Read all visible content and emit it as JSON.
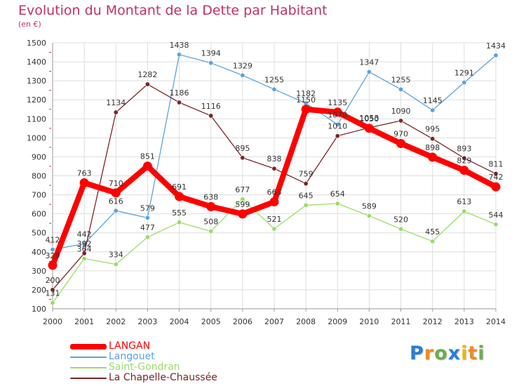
{
  "title": "Evolution du Montant de la Dette par Habitant",
  "unit": "(en €)",
  "logo": {
    "letters": [
      "P",
      "r",
      "o",
      "x",
      "i",
      "t",
      "i"
    ],
    "colors": [
      "#2a7fd4",
      "#f08a24",
      "#6ab04c",
      "#2a7fd4",
      "#e9b800",
      "#f08a24",
      "#6ab04c"
    ]
  },
  "chart_data": {
    "type": "line",
    "x": [
      "2000",
      "2001",
      "2002",
      "2003",
      "2004",
      "2005",
      "2006",
      "2007",
      "2008",
      "2009",
      "2010",
      "2011",
      "2012",
      "2013",
      "2014"
    ],
    "ylim": [
      100,
      1500
    ],
    "yticks": [
      "100",
      "200",
      "300",
      "400",
      "500",
      "600",
      "700",
      "800",
      "900",
      "1000",
      "1100",
      "1200",
      "1300",
      "1400",
      "1500"
    ],
    "grid": true,
    "legend_position": "bottom-left",
    "series": [
      {
        "name": "LANGAN",
        "color": "#ff0000",
        "values": [
          329,
          763,
          710,
          851,
          691,
          638,
          599,
          663,
          1150,
          1135,
          1050,
          970,
          898,
          829,
          742
        ],
        "labels": [
          "329",
          "763",
          "710",
          "851",
          "691",
          "638",
          "599",
          "663",
          "1150",
          "1135",
          "1050",
          "970",
          "898",
          "829",
          "742"
        ]
      },
      {
        "name": "Langouet",
        "color": "#5ba3d9",
        "values": [
          412,
          442,
          616,
          579,
          1438,
          1394,
          1329,
          1255,
          1182,
          1070,
          1347,
          1255,
          1145,
          1291,
          1434
        ],
        "labels": [
          "412",
          "442",
          "616",
          "579",
          "1438",
          "1394",
          "1329",
          "1255",
          "1182",
          "1070",
          "1347",
          "1255",
          "1145",
          "1291",
          "1434"
        ]
      },
      {
        "name": "Saint-Gondran",
        "color": "#99dd66",
        "values": [
          131,
          364,
          334,
          477,
          555,
          508,
          677,
          521,
          645,
          654,
          589,
          520,
          455,
          613,
          544
        ],
        "labels": [
          "131",
          "364",
          "334",
          "477",
          "555",
          "508",
          "677",
          "521",
          "645",
          "654",
          "589",
          "520",
          "455",
          "613",
          "544"
        ]
      },
      {
        "name": "La Chapelle-Chaussée",
        "color": "#7a2428",
        "values": [
          200,
          392,
          1134,
          1282,
          1186,
          1116,
          895,
          838,
          759,
          1010,
          1053,
          1090,
          995,
          893,
          811
        ],
        "labels": [
          "200",
          "392",
          "1134",
          "1282",
          "1186",
          "1116",
          "895",
          "838",
          "759",
          "1010",
          "1053",
          "1090",
          "995",
          "893",
          "811"
        ]
      }
    ]
  }
}
